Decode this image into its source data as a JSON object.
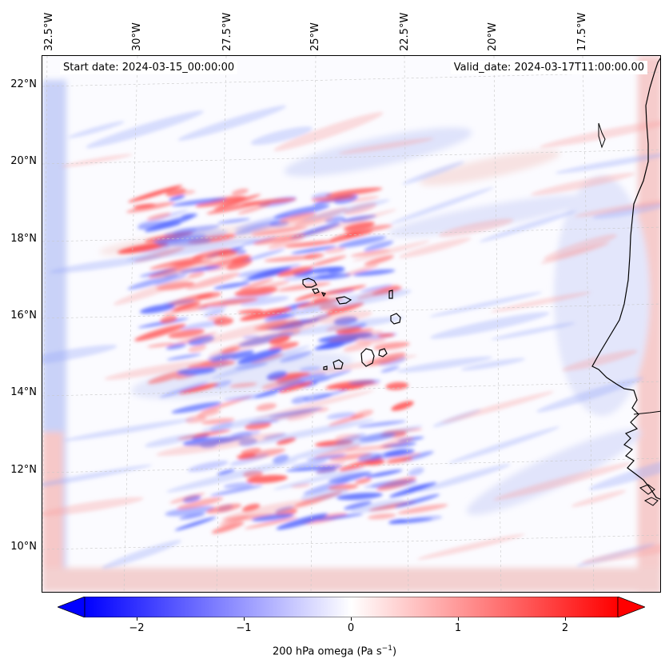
{
  "map": {
    "start_date": "Start date: 2024-03-15_00:00:00",
    "valid_date": "Valid_date: 2024-03-17T11:00:00.00",
    "longitude_labels": [
      "32.5°W",
      "30°W",
      "27.5°W",
      "25°W",
      "22.5°W",
      "20°W",
      "17.5°W"
    ],
    "latitude_labels": [
      "22°N",
      "20°N",
      "18°N",
      "16°N",
      "14°N",
      "12°N",
      "10°N"
    ],
    "region": "Cape Verde Islands and West African coast",
    "gridlines": true
  },
  "colorbar": {
    "ticks": [
      "−2",
      "−1",
      "0",
      "1",
      "2"
    ],
    "label_main": "200 hPa omega (Pa s",
    "label_sup": "−1",
    "label_end": ")",
    "range": [
      -2.75,
      2.75
    ],
    "colormap": "bwr",
    "extend": "both",
    "color_negative": "#0000ff",
    "color_zero": "#ffffff",
    "color_positive": "#ff0000"
  }
}
